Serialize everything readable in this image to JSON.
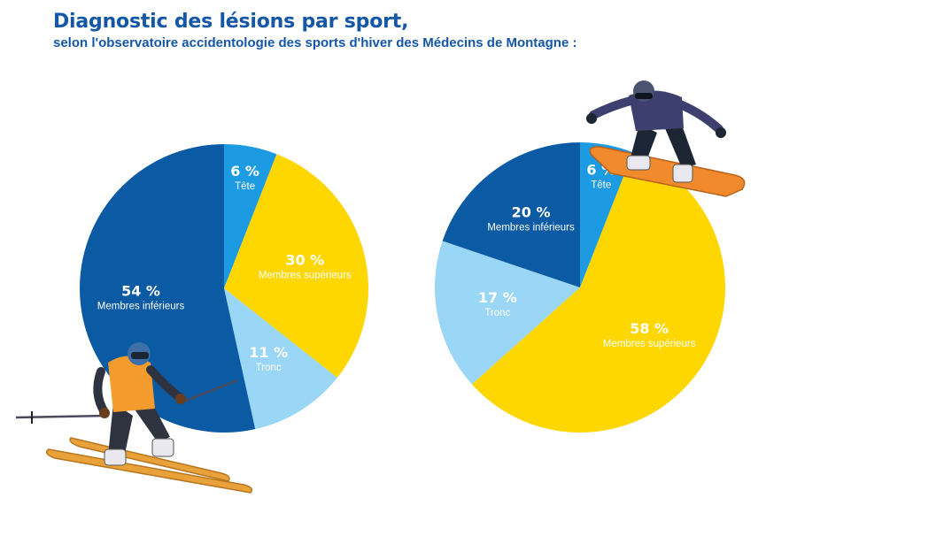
{
  "header": {
    "title": "Diagnostic des lésions par sport,",
    "subtitle": "selon l'observatoire accidentologie des sports d'hiver des Médecins de Montagne :"
  },
  "colors": {
    "tete": "#1c9be3",
    "membres_superieurs": "#fed600",
    "tronc": "#9ad6f6",
    "membres_inferieurs": "#0b5aa4",
    "title": "#1457a7"
  },
  "chart_data": [
    {
      "type": "pie",
      "subject": "ski",
      "slices": [
        {
          "value": 6,
          "pct_label": "6 %",
          "label": "Tête",
          "color": "#1c9be3"
        },
        {
          "value": 30,
          "pct_label": "30 %",
          "label": "Membres supérieurs",
          "color": "#fed600"
        },
        {
          "value": 11,
          "pct_label": "11 %",
          "label": "Tronc",
          "color": "#9ad6f6"
        },
        {
          "value": 54,
          "pct_label": "54 %",
          "label": "Membres inférieurs",
          "color": "#0b5aa4"
        }
      ]
    },
    {
      "type": "pie",
      "subject": "snowboard",
      "slices": [
        {
          "value": 6,
          "pct_label": "6 %",
          "label": "Tête",
          "color": "#1c9be3"
        },
        {
          "value": 58,
          "pct_label": "58 %",
          "label": "Membres supérieurs",
          "color": "#fed600"
        },
        {
          "value": 17,
          "pct_label": "17 %",
          "label": "Tronc",
          "color": "#9ad6f6"
        },
        {
          "value": 20,
          "pct_label": "20 %",
          "label": "Membres inférieurs",
          "color": "#0b5aa4"
        }
      ]
    }
  ]
}
